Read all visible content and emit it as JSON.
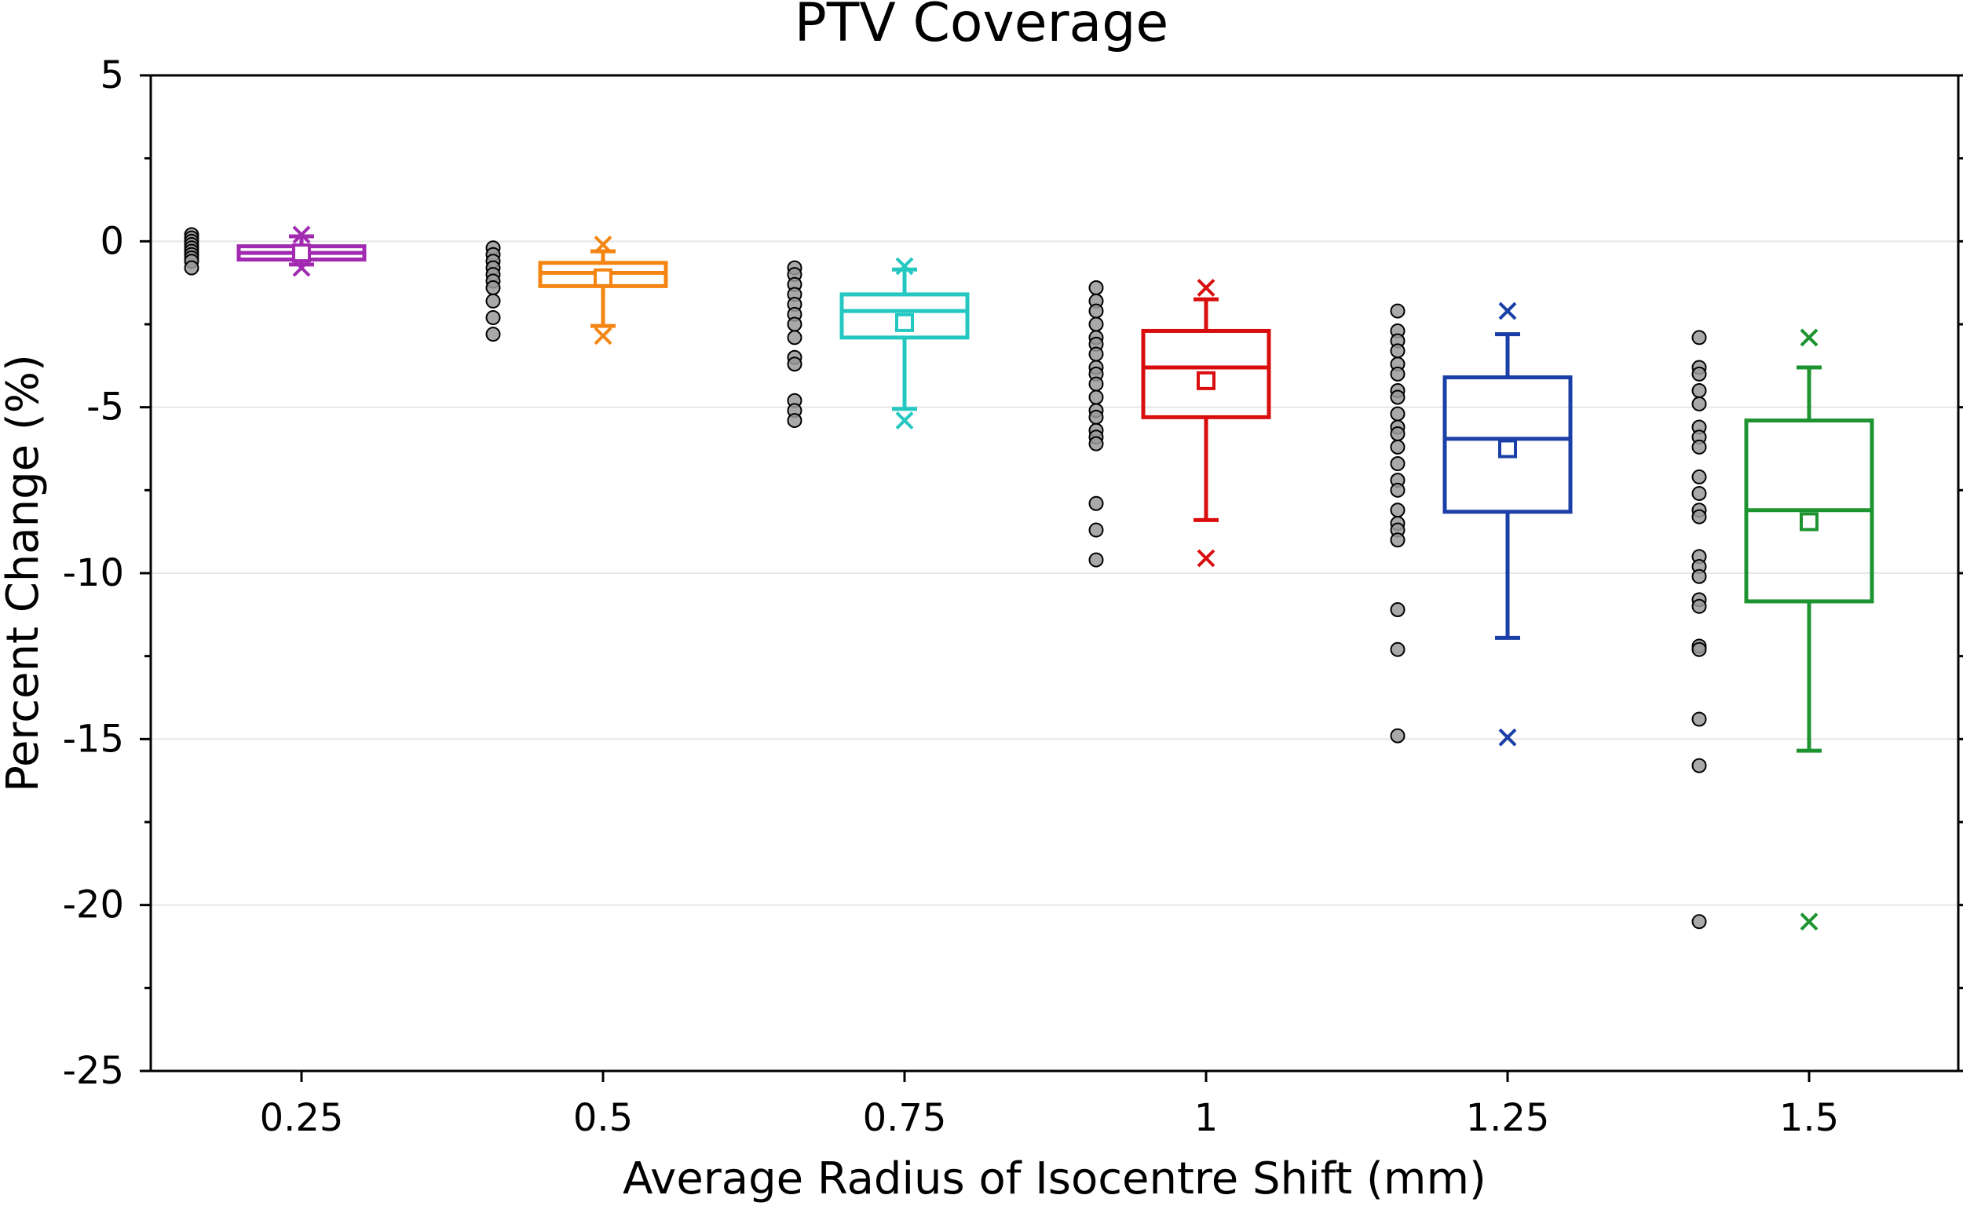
{
  "chart_data": {
    "type": "box",
    "title": "PTV Coverage",
    "xlabel": "Average Radius of Isocentre Shift (mm)",
    "ylabel": "Percent Change (%)",
    "ylim": [
      -25,
      5
    ],
    "yticks": [
      5,
      0,
      -5,
      -10,
      -15,
      -20,
      -25
    ],
    "ytick_labels": [
      "5",
      "0",
      "-5",
      "-10",
      "-15",
      "-20",
      "-25"
    ],
    "grid_values": [
      0,
      -5,
      -10,
      -15,
      -20
    ],
    "categories": [
      "0.25",
      "0.5",
      "0.75",
      "1",
      "1.25",
      "1.5"
    ],
    "series": [
      {
        "name": "0.25",
        "color": "#a12ab0",
        "box": {
          "whisker_high": 0.15,
          "q3": -0.15,
          "median": -0.35,
          "q1": -0.55,
          "whisker_low": -0.7,
          "mean": -0.35,
          "max": 0.2,
          "min": -0.8
        },
        "points": [
          0.2,
          0.1,
          0.0,
          -0.1,
          -0.2,
          -0.3,
          -0.4,
          -0.5,
          -0.6,
          -0.8
        ]
      },
      {
        "name": "0.5",
        "color": "#f58512",
        "box": {
          "whisker_high": -0.3,
          "q3": -0.65,
          "median": -0.95,
          "q1": -1.35,
          "whisker_low": -2.55,
          "mean": -1.1,
          "max": -0.1,
          "min": -2.85
        },
        "points": [
          -0.2,
          -0.4,
          -0.6,
          -0.8,
          -1.0,
          -1.2,
          -1.4,
          -1.8,
          -2.3,
          -2.8
        ]
      },
      {
        "name": "0.75",
        "color": "#25c7c1",
        "box": {
          "whisker_high": -0.85,
          "q3": -1.6,
          "median": -2.1,
          "q1": -2.9,
          "whisker_low": -5.05,
          "mean": -2.45,
          "max": -0.75,
          "min": -5.4
        },
        "points": [
          -0.8,
          -1.0,
          -1.3,
          -1.6,
          -1.9,
          -2.2,
          -2.5,
          -2.9,
          -3.5,
          -3.7,
          -4.8,
          -5.1,
          -5.4
        ]
      },
      {
        "name": "1",
        "color": "#d90d0d",
        "box": {
          "whisker_high": -1.75,
          "q3": -2.7,
          "median": -3.8,
          "q1": -5.3,
          "whisker_low": -8.4,
          "mean": -4.2,
          "max": -1.4,
          "min": -9.55
        },
        "points": [
          -1.4,
          -1.8,
          -2.1,
          -2.5,
          -2.9,
          -3.1,
          -3.4,
          -3.8,
          -4.0,
          -4.3,
          -4.7,
          -5.1,
          -5.3,
          -5.7,
          -5.9,
          -6.1,
          -7.9,
          -8.7,
          -9.6
        ]
      },
      {
        "name": "1.25",
        "color": "#1a3fa6",
        "box": {
          "whisker_high": -2.8,
          "q3": -4.1,
          "median": -5.95,
          "q1": -8.15,
          "whisker_low": -11.95,
          "mean": -6.25,
          "max": -2.1,
          "min": -14.95
        },
        "points": [
          -2.1,
          -2.7,
          -3.0,
          -3.3,
          -3.7,
          -4.0,
          -4.5,
          -4.7,
          -5.2,
          -5.6,
          -5.8,
          -6.2,
          -6.7,
          -7.2,
          -7.5,
          -8.1,
          -8.5,
          -8.7,
          -9.0,
          -11.1,
          -12.3,
          -14.9
        ]
      },
      {
        "name": "1.5",
        "color": "#1e9430",
        "box": {
          "whisker_high": -3.8,
          "q3": -5.4,
          "median": -8.1,
          "q1": -10.85,
          "whisker_low": -15.35,
          "mean": -8.45,
          "max": -2.9,
          "min": -20.5
        },
        "points": [
          -2.9,
          -3.8,
          -4.0,
          -4.5,
          -4.9,
          -5.6,
          -5.9,
          -6.2,
          -7.1,
          -7.6,
          -8.1,
          -8.3,
          -9.5,
          -9.8,
          -10.1,
          -10.8,
          -11.0,
          -12.2,
          -12.3,
          -14.4,
          -15.8,
          -20.5
        ]
      }
    ]
  }
}
